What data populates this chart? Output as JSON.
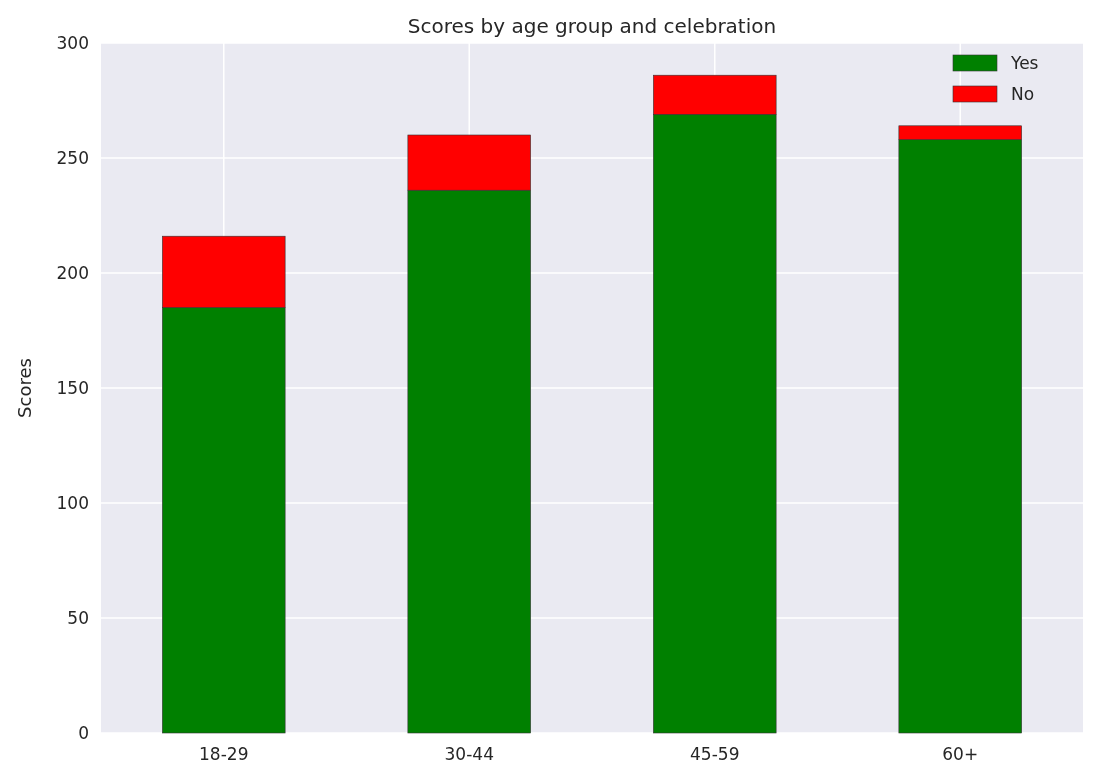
{
  "chart_data": {
    "type": "bar",
    "title": "Scores by age group and celebration",
    "ylabel": "Scores",
    "categories": [
      "18-29",
      "30-44",
      "45-59",
      "60+"
    ],
    "stacked": true,
    "series": [
      {
        "name": "Yes",
        "color": "#008000",
        "values": [
          185,
          236,
          269,
          258
        ]
      },
      {
        "name": "No",
        "color": "#ff0000",
        "values": [
          31,
          24,
          17,
          6
        ]
      }
    ],
    "ylim": [
      0,
      300
    ],
    "yticks": [
      0,
      50,
      100,
      150,
      200,
      250,
      300
    ],
    "grid": true,
    "legend": "top right"
  }
}
